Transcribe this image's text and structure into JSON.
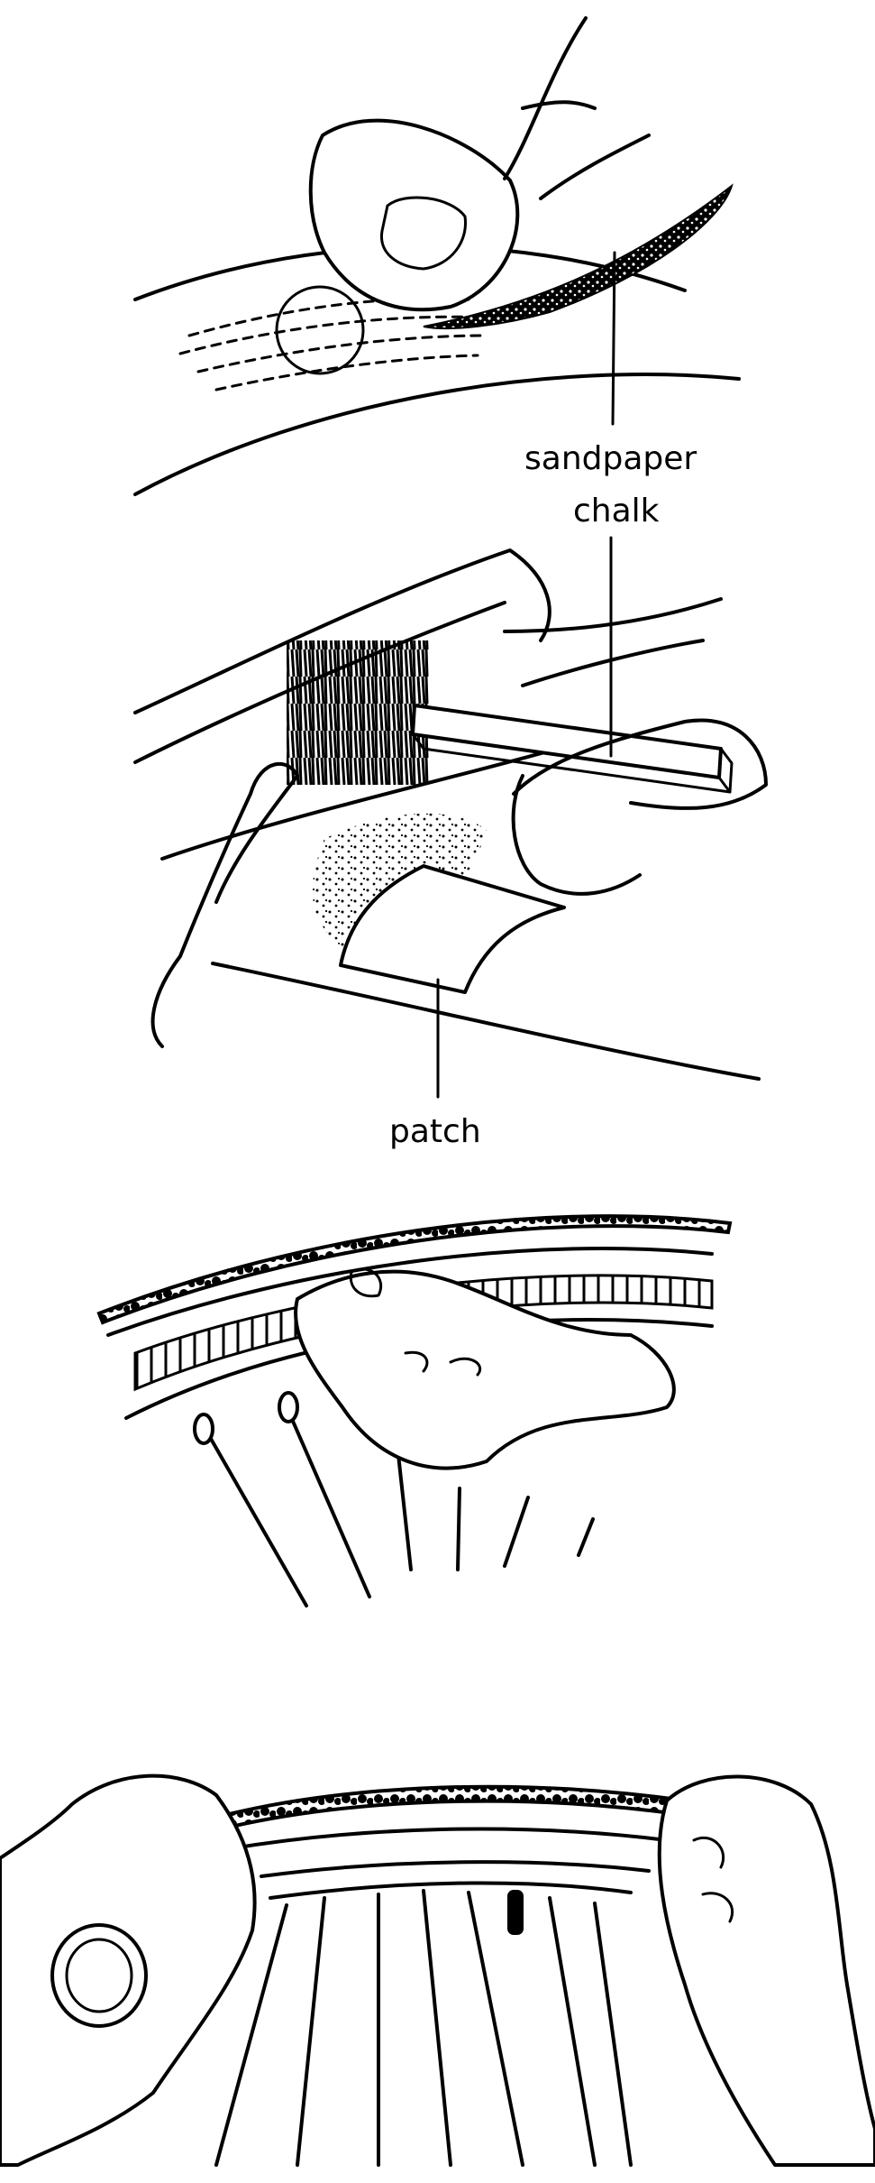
{
  "labels": {
    "sandpaper": "sandpaper",
    "chalk": "chalk",
    "patch": "patch"
  },
  "colors": {
    "ink": "#000000",
    "background": "#ffffff"
  }
}
